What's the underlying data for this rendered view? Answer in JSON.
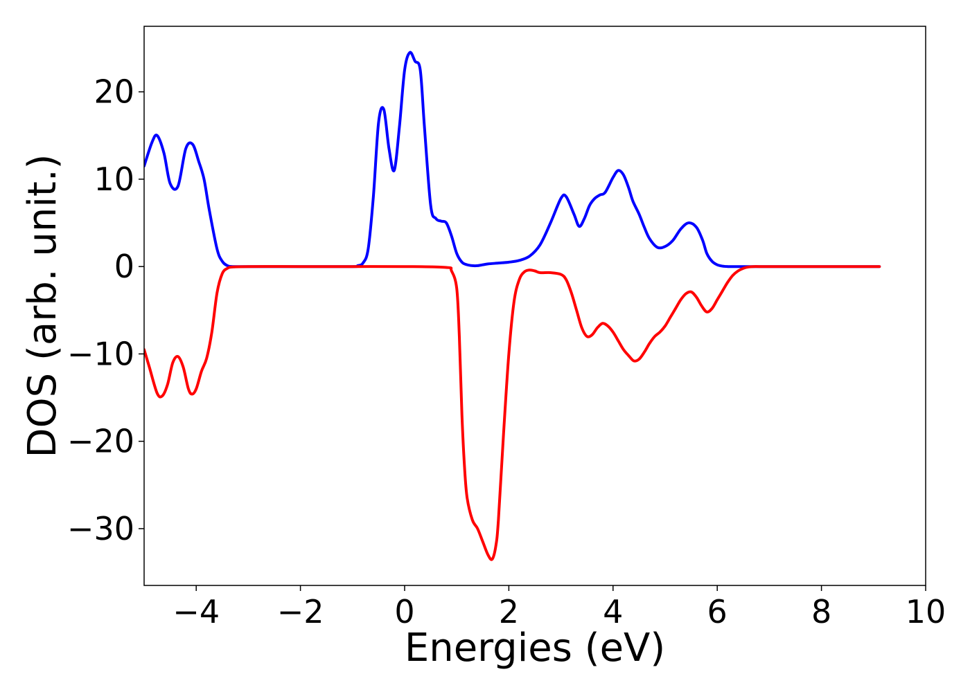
{
  "chart_data": {
    "type": "line",
    "title": "",
    "xlabel": "Energies (eV)",
    "ylabel": "DOS (arb. unit.)",
    "xlim": [
      -5,
      10
    ],
    "ylim": [
      -36.5,
      27.5
    ],
    "xticks": [
      -4,
      -2,
      0,
      2,
      4,
      6,
      8,
      10
    ],
    "xtick_labels": [
      "−4",
      "−2",
      "0",
      "2",
      "4",
      "6",
      "8",
      "10"
    ],
    "yticks": [
      -30,
      -20,
      -10,
      0,
      10,
      20
    ],
    "ytick_labels": [
      "−30",
      "−20",
      "−10",
      "0",
      "10",
      "20"
    ],
    "grid": false,
    "legend": false,
    "series": [
      {
        "color": "#0000ff",
        "x": [
          -5.0,
          -4.85,
          -4.75,
          -4.62,
          -4.5,
          -4.35,
          -4.2,
          -4.07,
          -3.95,
          -3.85,
          -3.75,
          -3.6,
          -3.5,
          -3.4,
          -3.3,
          -3.0,
          -2.0,
          -1.0,
          -0.9,
          -0.8,
          -0.7,
          -0.6,
          -0.5,
          -0.4,
          -0.3,
          -0.2,
          -0.1,
          0.0,
          0.1,
          0.2,
          0.3,
          0.38,
          0.5,
          0.6,
          0.7,
          0.8,
          0.9,
          1.0,
          1.1,
          1.2,
          1.3,
          1.4,
          1.5,
          1.6,
          1.8,
          2.0,
          2.2,
          2.4,
          2.6,
          2.8,
          3.0,
          3.1,
          3.25,
          3.35,
          3.45,
          3.55,
          3.65,
          3.75,
          3.85,
          4.0,
          4.1,
          4.2,
          4.3,
          4.38,
          4.5,
          4.6,
          4.7,
          4.85,
          5.0,
          5.15,
          5.3,
          5.45,
          5.6,
          5.72,
          5.8,
          5.9,
          6.0,
          6.1,
          6.2,
          6.3,
          6.45,
          6.6,
          6.8,
          7.0,
          8.0,
          9.0,
          9.1
        ],
        "y": [
          11.5,
          14.2,
          15.0,
          13.0,
          9.5,
          9.2,
          13.5,
          14.0,
          12.0,
          10.0,
          6.5,
          2.0,
          0.6,
          0.1,
          0.0,
          0.0,
          0.0,
          0.0,
          0.1,
          0.4,
          2.0,
          8.0,
          16.5,
          18.0,
          13.5,
          11.0,
          16.0,
          22.5,
          24.5,
          23.5,
          22.5,
          16.0,
          7.0,
          5.5,
          5.2,
          5.0,
          3.5,
          1.5,
          0.5,
          0.2,
          0.1,
          0.1,
          0.2,
          0.3,
          0.4,
          0.5,
          0.7,
          1.2,
          2.5,
          5.0,
          7.8,
          8.0,
          6.0,
          4.6,
          5.5,
          7.0,
          7.8,
          8.2,
          8.5,
          10.2,
          11.0,
          10.5,
          9.0,
          7.5,
          6.0,
          4.5,
          3.2,
          2.2,
          2.3,
          3.0,
          4.3,
          5.0,
          4.5,
          3.0,
          1.5,
          0.6,
          0.2,
          0.05,
          0.0,
          0.0,
          0.0,
          0.0,
          0.0,
          0.0,
          0.0,
          0.0,
          0.0
        ]
      },
      {
        "color": "#ff0000",
        "x": [
          -5.0,
          -4.9,
          -4.75,
          -4.65,
          -4.55,
          -4.45,
          -4.35,
          -4.25,
          -4.15,
          -4.08,
          -4.0,
          -3.9,
          -3.8,
          -3.7,
          -3.6,
          -3.5,
          -3.4,
          -3.3,
          -3.0,
          -2.0,
          -1.0,
          0.0,
          0.8,
          0.9,
          1.0,
          1.05,
          1.1,
          1.15,
          1.2,
          1.3,
          1.4,
          1.5,
          1.6,
          1.68,
          1.75,
          1.8,
          1.9,
          2.0,
          2.1,
          2.2,
          2.3,
          2.4,
          2.5,
          2.6,
          2.8,
          3.0,
          3.1,
          3.2,
          3.3,
          3.4,
          3.5,
          3.6,
          3.7,
          3.8,
          3.9,
          4.0,
          4.1,
          4.2,
          4.3,
          4.4,
          4.5,
          4.6,
          4.7,
          4.8,
          4.9,
          5.0,
          5.1,
          5.2,
          5.3,
          5.4,
          5.5,
          5.6,
          5.7,
          5.8,
          5.9,
          6.0,
          6.1,
          6.2,
          6.3,
          6.4,
          6.5,
          6.6,
          6.7,
          6.8,
          7.0,
          8.0,
          9.0,
          9.1
        ],
        "y": [
          -9.5,
          -11.5,
          -14.5,
          -14.8,
          -13.5,
          -11.0,
          -10.3,
          -11.5,
          -14.0,
          -14.6,
          -14.0,
          -12.0,
          -10.5,
          -7.5,
          -3.0,
          -0.8,
          -0.2,
          -0.05,
          0.0,
          0.0,
          0.0,
          0.0,
          -0.1,
          -0.5,
          -2.5,
          -8.0,
          -17.0,
          -23.0,
          -26.5,
          -29.0,
          -30.0,
          -31.5,
          -33.0,
          -33.5,
          -32.0,
          -29.0,
          -19.0,
          -10.0,
          -4.0,
          -1.5,
          -0.6,
          -0.4,
          -0.5,
          -0.7,
          -0.7,
          -0.9,
          -1.5,
          -3.0,
          -5.0,
          -7.0,
          -8.0,
          -7.8,
          -7.0,
          -6.5,
          -6.8,
          -7.5,
          -8.5,
          -9.5,
          -10.2,
          -10.8,
          -10.6,
          -9.8,
          -8.8,
          -8.0,
          -7.5,
          -6.8,
          -5.8,
          -4.8,
          -3.8,
          -3.1,
          -2.9,
          -3.5,
          -4.5,
          -5.2,
          -4.8,
          -3.8,
          -2.8,
          -1.8,
          -1.0,
          -0.5,
          -0.2,
          -0.05,
          0.0,
          0.0,
          0.0,
          0.0,
          0.0,
          0.0
        ]
      }
    ]
  }
}
